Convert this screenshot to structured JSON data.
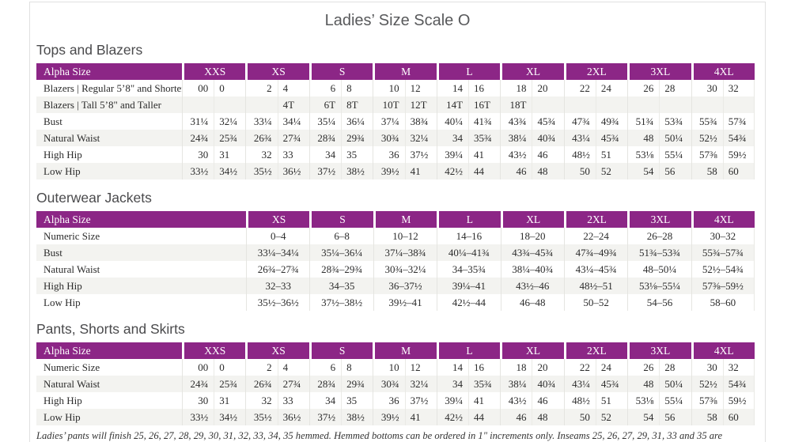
{
  "page": {
    "title": "Ladies’ Size Scale O",
    "footnote": "Ladies’ pants will finish 25, 26, 27, 28, 29, 30, 31, 32, 33, 34, 35 hemmed. Hemmed bottoms can be ordered in 1\" increments only. Inseams 25, 26, 27, 29, 31, 33 and 35 are nonreturnable."
  },
  "colors": {
    "header_purple": "#8C2686",
    "row_alt_gray": "#F3F3F0",
    "divider": "#E5E5E1",
    "card_border": "#E0E0E0"
  },
  "tables": [
    {
      "section_title": "Tops and Blazers",
      "label_header": "Alpha Size",
      "split_columns": true,
      "columns": [
        "XXS",
        "XS",
        "S",
        "M",
        "L",
        "XL",
        "2XL",
        "3XL",
        "4XL"
      ],
      "rows": [
        {
          "label": "Blazers  |  Regular 5’8\" and Shorter",
          "values": [
            [
              "00",
              "0"
            ],
            [
              "2",
              "4"
            ],
            [
              "6",
              "8"
            ],
            [
              "10",
              "12"
            ],
            [
              "14",
              "16"
            ],
            [
              "18",
              "20"
            ],
            [
              "22",
              "24"
            ],
            [
              "26",
              "28"
            ],
            [
              "30",
              "32"
            ]
          ]
        },
        {
          "label": "Blazers  |  Tall 5’8\" and Taller",
          "values": [
            [
              "",
              ""
            ],
            [
              "",
              "4T"
            ],
            [
              "6T",
              "8T"
            ],
            [
              "10T",
              "12T"
            ],
            [
              "14T",
              "16T"
            ],
            [
              "18T",
              ""
            ],
            [
              "",
              ""
            ],
            [
              "",
              ""
            ],
            [
              "",
              ""
            ]
          ]
        },
        {
          "label": "Bust",
          "values": [
            [
              "31¼",
              "32¼"
            ],
            [
              "33¼",
              "34¼"
            ],
            [
              "35¼",
              "36¼"
            ],
            [
              "37¼",
              "38¾"
            ],
            [
              "40¼",
              "41¾"
            ],
            [
              "43¾",
              "45¾"
            ],
            [
              "47¾",
              "49¾"
            ],
            [
              "51¾",
              "53¾"
            ],
            [
              "55¾",
              "57¾"
            ]
          ]
        },
        {
          "label": "Natural Waist",
          "values": [
            [
              "24¾",
              "25¾"
            ],
            [
              "26¾",
              "27¾"
            ],
            [
              "28¾",
              "29¾"
            ],
            [
              "30¾",
              "32¼"
            ],
            [
              "34",
              "35¾"
            ],
            [
              "38¼",
              "40¾"
            ],
            [
              "43¼",
              "45¾"
            ],
            [
              "48",
              "50¼"
            ],
            [
              "52½",
              "54¾"
            ]
          ]
        },
        {
          "label": "High Hip",
          "values": [
            [
              "30",
              "31"
            ],
            [
              "32",
              "33"
            ],
            [
              "34",
              "35"
            ],
            [
              "36",
              "37½"
            ],
            [
              "39¼",
              "41"
            ],
            [
              "43½",
              "46"
            ],
            [
              "48½",
              "51"
            ],
            [
              "53⅛",
              "55¼"
            ],
            [
              "57⅜",
              "59½"
            ]
          ]
        },
        {
          "label": "Low Hip",
          "values": [
            [
              "33½",
              "34½"
            ],
            [
              "35½",
              "36½"
            ],
            [
              "37½",
              "38½"
            ],
            [
              "39½",
              "41"
            ],
            [
              "42½",
              "44"
            ],
            [
              "46",
              "48"
            ],
            [
              "50",
              "52"
            ],
            [
              "54",
              "56"
            ],
            [
              "58",
              "60"
            ]
          ]
        }
      ]
    },
    {
      "section_title": "Outerwear Jackets",
      "label_header": "Alpha Size",
      "split_columns": false,
      "columns": [
        "XS",
        "S",
        "M",
        "L",
        "XL",
        "2XL",
        "3XL",
        "4XL"
      ],
      "rows": [
        {
          "label": "Numeric Size",
          "values": [
            "0–4",
            "6–8",
            "10–12",
            "14–16",
            "18–20",
            "22–24",
            "26–28",
            "30–32"
          ]
        },
        {
          "label": "Bust",
          "values": [
            "33¼–34¼",
            "35¼–36¼",
            "37¼–38¾",
            "40¼–41¾",
            "43¾–45¾",
            "47¾–49¾",
            "51¾–53¾",
            "55¾–57¾"
          ]
        },
        {
          "label": "Natural Waist",
          "values": [
            "26¾–27¾",
            "28¾–29¾",
            "30¾–32¼",
            "34–35¾",
            "38¼–40¾",
            "43¼–45¾",
            "48–50¼",
            "52½–54¾"
          ]
        },
        {
          "label": "High Hip",
          "values": [
            "32–33",
            "34–35",
            "36–37½",
            "39¼–41",
            "43½–46",
            "48½–51",
            "53⅛–55¼",
            "57⅜–59½"
          ]
        },
        {
          "label": "Low Hip",
          "values": [
            "35½–36½",
            "37½–38½",
            "39½–41",
            "42½–44",
            "46–48",
            "50–52",
            "54–56",
            "58–60"
          ]
        }
      ]
    },
    {
      "section_title": "Pants, Shorts and Skirts",
      "label_header": "Alpha Size",
      "split_columns": true,
      "columns": [
        "XXS",
        "XS",
        "S",
        "M",
        "L",
        "XL",
        "2XL",
        "3XL",
        "4XL"
      ],
      "rows": [
        {
          "label": "Numeric Size",
          "values": [
            [
              "00",
              "0"
            ],
            [
              "2",
              "4"
            ],
            [
              "6",
              "8"
            ],
            [
              "10",
              "12"
            ],
            [
              "14",
              "16"
            ],
            [
              "18",
              "20"
            ],
            [
              "22",
              "24"
            ],
            [
              "26",
              "28"
            ],
            [
              "30",
              "32"
            ]
          ]
        },
        {
          "label": "Natural Waist",
          "values": [
            [
              "24¾",
              "25¾"
            ],
            [
              "26¾",
              "27¾"
            ],
            [
              "28¾",
              "29¾"
            ],
            [
              "30¾",
              "32¼"
            ],
            [
              "34",
              "35¾"
            ],
            [
              "38¼",
              "40¾"
            ],
            [
              "43¼",
              "45¾"
            ],
            [
              "48",
              "50¼"
            ],
            [
              "52½",
              "54¾"
            ]
          ]
        },
        {
          "label": "High Hip",
          "values": [
            [
              "30",
              "31"
            ],
            [
              "32",
              "33"
            ],
            [
              "34",
              "35"
            ],
            [
              "36",
              "37½"
            ],
            [
              "39¼",
              "41"
            ],
            [
              "43½",
              "46"
            ],
            [
              "48½",
              "51"
            ],
            [
              "53⅛",
              "55¼"
            ],
            [
              "57⅜",
              "59½"
            ]
          ]
        },
        {
          "label": "Low Hip",
          "values": [
            [
              "33½",
              "34½"
            ],
            [
              "35½",
              "36½"
            ],
            [
              "37½",
              "38½"
            ],
            [
              "39½",
              "41"
            ],
            [
              "42½",
              "44"
            ],
            [
              "46",
              "48"
            ],
            [
              "50",
              "52"
            ],
            [
              "54",
              "56"
            ],
            [
              "58",
              "60"
            ]
          ]
        }
      ]
    }
  ]
}
